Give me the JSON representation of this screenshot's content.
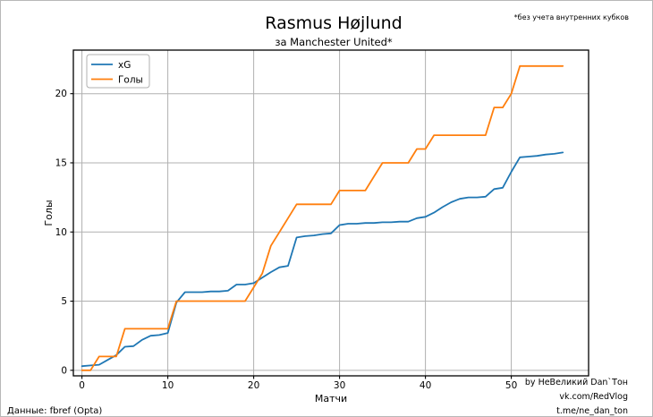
{
  "title": "Rasmus Højlund",
  "subtitle": "за Manchester United*",
  "annotation": "*без учета внутренних кубков",
  "source_note": "Данные: fbref (Opta)",
  "credits": [
    "by НеВеликий Dan`Тон",
    "vk.com/RedVlog",
    "t.me/ne_dan_ton"
  ],
  "colors": {
    "xg_line": "#1f77b4",
    "goals_line": "#ff7f0e",
    "grid": "#b0b0b0",
    "spine": "#000000",
    "background": "#ffffff",
    "legend_border": "#b0b0b0"
  },
  "legend": {
    "items": [
      {
        "label": "xG"
      },
      {
        "label": "Голы"
      }
    ],
    "position": "upper-left"
  },
  "chart_data": {
    "type": "line",
    "title": "Rasmus Højlund",
    "subtitle": "за Manchester United*",
    "xlabel": "Матчи",
    "ylabel": "Голы",
    "grid": true,
    "legend_position": "upper-left",
    "x_ticks": [
      0,
      10,
      20,
      30,
      40,
      50
    ],
    "y_ticks": [
      0,
      5,
      10,
      15,
      20
    ],
    "xlim": [
      -1.0,
      59.0
    ],
    "ylim": [
      -0.4,
      23.15
    ],
    "x": [
      0,
      1,
      2,
      3,
      4,
      5,
      6,
      7,
      8,
      9,
      10,
      11,
      12,
      13,
      14,
      15,
      16,
      17,
      18,
      19,
      20,
      21,
      22,
      23,
      24,
      25,
      26,
      27,
      28,
      29,
      30,
      31,
      32,
      33,
      34,
      35,
      36,
      37,
      38,
      39,
      40,
      41,
      42,
      43,
      44,
      45,
      46,
      47,
      48,
      49,
      50,
      51,
      52,
      53,
      54,
      55,
      56
    ],
    "series": [
      {
        "name": "xG",
        "color": "#1f77b4",
        "values": [
          0.3,
          0.35,
          0.4,
          0.75,
          1.1,
          1.7,
          1.75,
          2.2,
          2.5,
          2.55,
          2.7,
          4.9,
          5.65,
          5.65,
          5.65,
          5.7,
          5.7,
          5.75,
          6.2,
          6.2,
          6.3,
          6.7,
          7.1,
          7.45,
          7.55,
          9.6,
          9.7,
          9.75,
          9.85,
          9.9,
          10.5,
          10.6,
          10.6,
          10.65,
          10.65,
          10.7,
          10.7,
          10.75,
          10.75,
          11.0,
          11.1,
          11.4,
          11.8,
          12.15,
          12.4,
          12.5,
          12.5,
          12.55,
          13.1,
          13.2,
          14.35,
          15.4,
          15.45,
          15.5,
          15.6,
          15.65,
          15.75
        ]
      },
      {
        "name": "Голы",
        "color": "#ff7f0e",
        "values": [
          0,
          0,
          1,
          1,
          1,
          3,
          3,
          3,
          3,
          3,
          3,
          5,
          5,
          5,
          5,
          5,
          5,
          5,
          5,
          5,
          6,
          7,
          9,
          10,
          11,
          12,
          12,
          12,
          12,
          12,
          13,
          13,
          13,
          13,
          14,
          15,
          15,
          15,
          15,
          16,
          16,
          17,
          17,
          17,
          17,
          17,
          17,
          17,
          19,
          19,
          20,
          22,
          22,
          22,
          22,
          22,
          22
        ]
      }
    ]
  }
}
